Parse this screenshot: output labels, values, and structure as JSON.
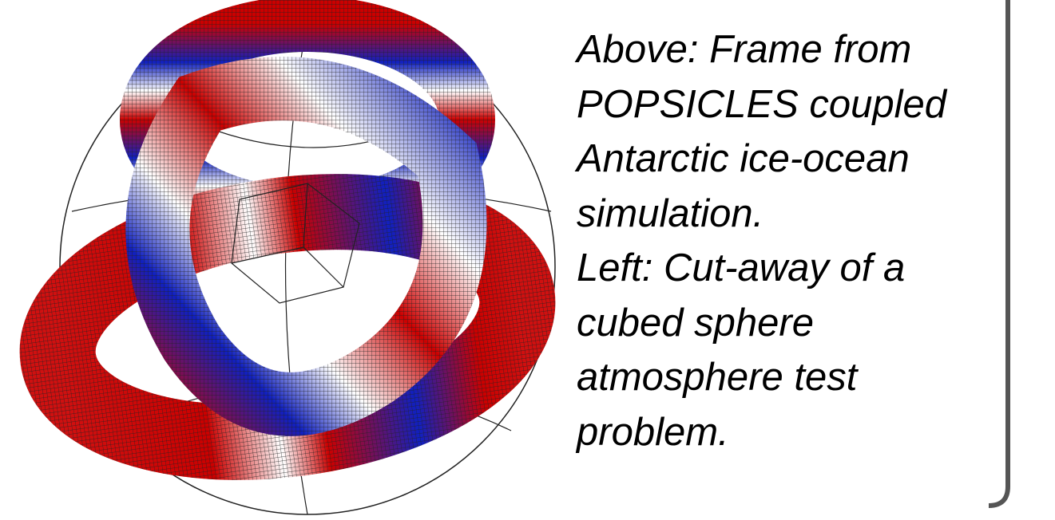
{
  "caption": {
    "lines": [
      "Above: Frame from",
      "POPSICLES coupled",
      "Antarctic ice-ocean",
      "simulation.",
      "Left: Cut-away of a",
      "cubed sphere",
      "atmosphere test",
      "problem."
    ]
  }
}
